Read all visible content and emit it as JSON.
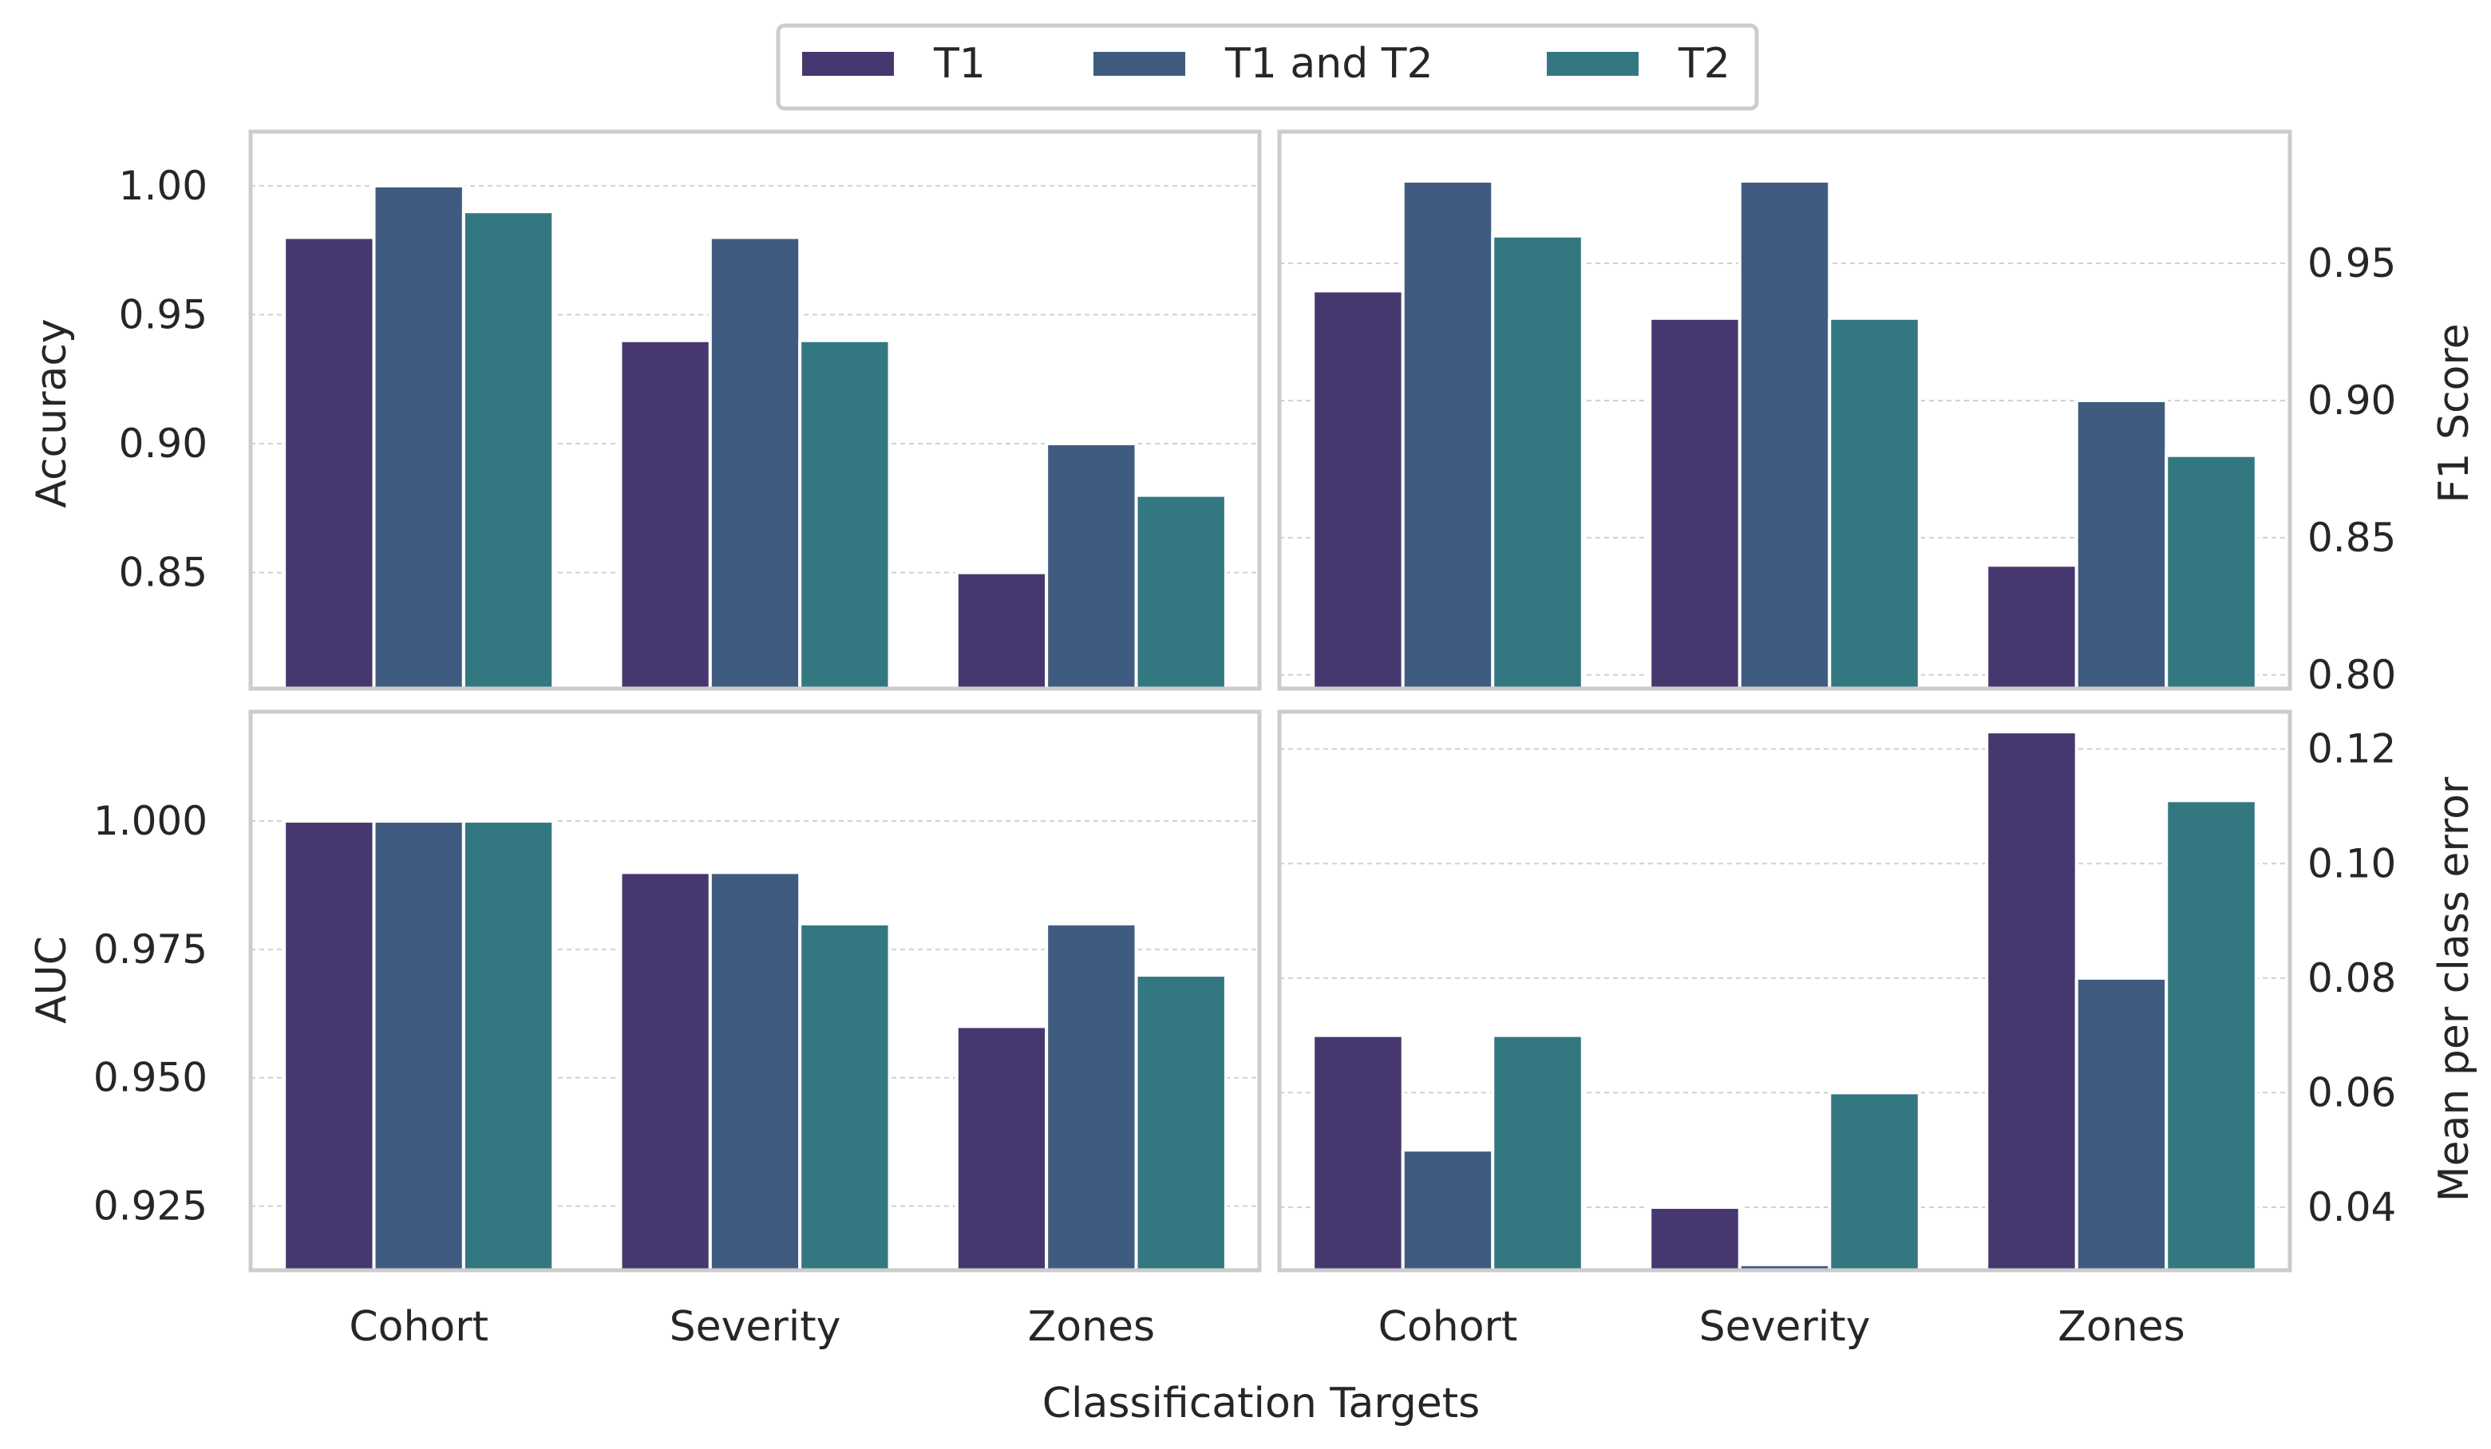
{
  "chart_data": {
    "type": "bar",
    "layout": "2x2 grid of grouped bar charts, legend top-center",
    "legend": {
      "placement": "top-center",
      "entries": [
        "T1",
        "T1 and T2",
        "T2"
      ]
    },
    "series_colors": {
      "T1": "#47376f",
      "T1 and T2": "#3f5c80",
      "T2": "#337880"
    },
    "categories": [
      "Cohort",
      "Severity",
      "Zones"
    ],
    "shared_xlabel": "Classification Targets",
    "grid": "horizontal dashed",
    "panels": [
      {
        "id": "accuracy",
        "ylabel": "Accuracy",
        "y_axis_side": "left",
        "ylim": [
          0.805,
          1.021
        ],
        "yticks": [
          0.85,
          0.9,
          0.95,
          1.0
        ],
        "ytick_labels": [
          "0.85",
          "0.90",
          "0.95",
          "1.00"
        ],
        "show_x_labels": false,
        "series": [
          {
            "name": "T1",
            "values": [
              0.98,
              0.94,
              0.85
            ]
          },
          {
            "name": "T1 and T2",
            "values": [
              1.0,
              0.98,
              0.9
            ]
          },
          {
            "name": "T2",
            "values": [
              0.99,
              0.94,
              0.88
            ]
          }
        ]
      },
      {
        "id": "f1",
        "ylabel": "F1 Score",
        "y_axis_side": "right",
        "ylim": [
          0.795,
          0.998
        ],
        "yticks": [
          0.8,
          0.85,
          0.9,
          0.95
        ],
        "ytick_labels": [
          "0.80",
          "0.85",
          "0.90",
          "0.95"
        ],
        "show_x_labels": false,
        "series": [
          {
            "name": "T1",
            "values": [
              0.94,
              0.93,
              0.84
            ]
          },
          {
            "name": "T1 and T2",
            "values": [
              0.98,
              0.98,
              0.9
            ]
          },
          {
            "name": "T2",
            "values": [
              0.96,
              0.93,
              0.88
            ]
          }
        ]
      },
      {
        "id": "auc",
        "ylabel": "AUC",
        "y_axis_side": "left",
        "ylim": [
          0.9125,
          1.0213
        ],
        "yticks": [
          0.925,
          0.95,
          0.975,
          1.0
        ],
        "ytick_labels": [
          "0.925",
          "0.950",
          "0.975",
          "1.000"
        ],
        "show_x_labels": true,
        "series": [
          {
            "name": "T1",
            "values": [
              1.0,
              0.99,
              0.96
            ]
          },
          {
            "name": "T1 and T2",
            "values": [
              1.0,
              0.99,
              0.98
            ]
          },
          {
            "name": "T2",
            "values": [
              1.0,
              0.98,
              0.97
            ]
          }
        ]
      },
      {
        "id": "mpce",
        "ylabel": "Mean per class error",
        "y_axis_side": "right",
        "ylim": [
          0.029,
          0.1265
        ],
        "yticks": [
          0.04,
          0.06,
          0.08,
          0.1,
          0.12
        ],
        "ytick_labels": [
          "0.04",
          "0.06",
          "0.08",
          "0.10",
          "0.12"
        ],
        "show_x_labels": true,
        "series": [
          {
            "name": "T1",
            "values": [
              0.07,
              0.04,
              0.123
            ]
          },
          {
            "name": "T1 and T2",
            "values": [
              0.05,
              0.03,
              0.08
            ]
          },
          {
            "name": "T2",
            "values": [
              0.07,
              0.06,
              0.111
            ]
          }
        ]
      }
    ]
  }
}
